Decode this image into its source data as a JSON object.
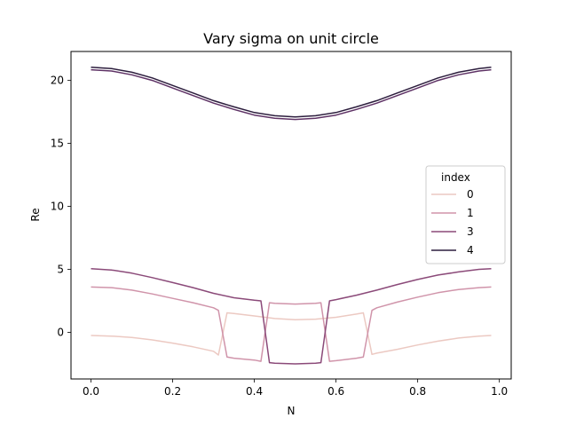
{
  "chart_data": {
    "type": "line",
    "title": "Vary sigma on unit circle",
    "xlabel": "N",
    "ylabel": "Re",
    "xlim": [
      -0.049,
      1.029
    ],
    "ylim": [
      -3.7,
      22.3
    ],
    "xticks": [
      0.0,
      0.2,
      0.4,
      0.6,
      0.8,
      1.0
    ],
    "xtick_labels": [
      "0.0",
      "0.2",
      "0.4",
      "0.6",
      "0.8",
      "1.0"
    ],
    "yticks": [
      0,
      5,
      10,
      15,
      20
    ],
    "ytick_labels": [
      "0",
      "5",
      "10",
      "15",
      "20"
    ],
    "grid": false,
    "legend": {
      "title": "index",
      "position": "center-right"
    },
    "series": [
      {
        "name": "0",
        "color": "#ecc9c2",
        "x": [
          0.0,
          0.05,
          0.1,
          0.15,
          0.2,
          0.25,
          0.3,
          0.312,
          0.333,
          0.35,
          0.4,
          0.45,
          0.5,
          0.55,
          0.6,
          0.65,
          0.667,
          0.688,
          0.7,
          0.75,
          0.8,
          0.85,
          0.9,
          0.95,
          0.98
        ],
        "y": [
          -0.25,
          -0.3,
          -0.4,
          -0.6,
          -0.85,
          -1.15,
          -1.5,
          -1.8,
          1.55,
          1.5,
          1.3,
          1.1,
          1.0,
          1.05,
          1.2,
          1.45,
          1.55,
          -1.75,
          -1.65,
          -1.35,
          -1.0,
          -0.7,
          -0.45,
          -0.3,
          -0.25
        ]
      },
      {
        "name": "1",
        "color": "#d094aa",
        "x": [
          0.0,
          0.05,
          0.1,
          0.15,
          0.2,
          0.25,
          0.3,
          0.312,
          0.333,
          0.35,
          0.4,
          0.416,
          0.437,
          0.45,
          0.5,
          0.55,
          0.563,
          0.584,
          0.6,
          0.65,
          0.667,
          0.688,
          0.7,
          0.75,
          0.8,
          0.85,
          0.9,
          0.95,
          0.98
        ],
        "y": [
          3.6,
          3.55,
          3.35,
          3.05,
          2.7,
          2.35,
          1.95,
          1.75,
          -1.95,
          -2.05,
          -2.2,
          -2.3,
          2.35,
          2.3,
          2.25,
          2.3,
          2.35,
          -2.3,
          -2.25,
          -2.05,
          -1.95,
          1.75,
          1.95,
          2.4,
          2.8,
          3.15,
          3.4,
          3.55,
          3.6
        ]
      },
      {
        "name": "3",
        "color": "#8b4a79",
        "x": [
          0.0,
          0.05,
          0.1,
          0.15,
          0.2,
          0.25,
          0.3,
          0.35,
          0.4,
          0.416,
          0.437,
          0.45,
          0.5,
          0.55,
          0.563,
          0.584,
          0.6,
          0.65,
          0.7,
          0.75,
          0.8,
          0.85,
          0.9,
          0.95,
          0.98
        ],
        "y": [
          5.05,
          4.95,
          4.7,
          4.35,
          3.95,
          3.55,
          3.1,
          2.75,
          2.55,
          2.5,
          -2.4,
          -2.45,
          -2.5,
          -2.45,
          -2.4,
          2.5,
          2.6,
          2.95,
          3.35,
          3.8,
          4.2,
          4.55,
          4.8,
          5.0,
          5.05
        ]
      },
      {
        "name": "4",
        "color": "#2d1e3e",
        "x": [
          0.0,
          0.05,
          0.1,
          0.15,
          0.2,
          0.25,
          0.3,
          0.35,
          0.4,
          0.45,
          0.5,
          0.55,
          0.6,
          0.65,
          0.7,
          0.75,
          0.8,
          0.85,
          0.9,
          0.95,
          0.98
        ],
        "y": [
          21.05,
          20.95,
          20.65,
          20.2,
          19.6,
          19.0,
          18.4,
          17.9,
          17.45,
          17.2,
          17.1,
          17.2,
          17.45,
          17.9,
          18.4,
          19.0,
          19.6,
          20.2,
          20.65,
          20.95,
          21.05
        ]
      },
      {
        "name": "",
        "color": "#5e3265",
        "x": [
          0.0,
          0.05,
          0.1,
          0.15,
          0.2,
          0.25,
          0.3,
          0.35,
          0.4,
          0.45,
          0.5,
          0.55,
          0.6,
          0.65,
          0.7,
          0.75,
          0.8,
          0.85,
          0.9,
          0.95,
          0.98
        ],
        "y": [
          20.85,
          20.75,
          20.45,
          20.0,
          19.4,
          18.8,
          18.2,
          17.7,
          17.25,
          17.0,
          16.9,
          17.0,
          17.25,
          17.7,
          18.2,
          18.8,
          19.4,
          20.0,
          20.45,
          20.75,
          20.85
        ]
      }
    ],
    "legend_entries": [
      {
        "label": "0",
        "color": "#ecc9c2"
      },
      {
        "label": "1",
        "color": "#d094aa"
      },
      {
        "label": "3",
        "color": "#8b4a79"
      },
      {
        "label": "4",
        "color": "#2d1e3e"
      }
    ]
  }
}
